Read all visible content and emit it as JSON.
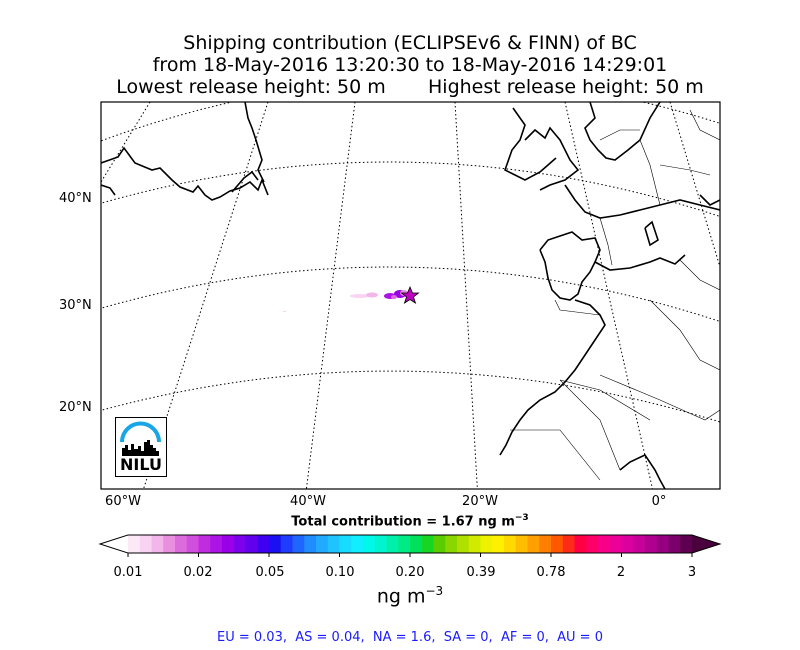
{
  "title": {
    "line1": "Shipping contribution (ECLIPSEv6 & FINN) of BC",
    "line2": "from 18-May-2016 13:20:30 to 18-May-2016 14:29:01",
    "line3": "Lowest release height: 50 m       Highest release height: 50 m"
  },
  "map": {
    "lat_labels": [
      "40°N",
      "30°N",
      "20°N"
    ],
    "lon_labels": [
      "60°W",
      "40°W",
      "20°W",
      "0°"
    ],
    "release_marker": "star-icon",
    "logo_text": "NILU"
  },
  "total": {
    "prefix": "Total contribution = 1.67 ng m",
    "exp": "−3"
  },
  "colorbar": {
    "ticks": [
      "0.01",
      "0.02",
      "0.05",
      "0.10",
      "0.20",
      "0.39",
      "0.78",
      "2",
      "3"
    ],
    "unit_base": "ng m",
    "unit_exp": "−3",
    "colors": [
      "#fde8f8",
      "#f9d3f2",
      "#f2b6ea",
      "#e88fe0",
      "#dc6bdc",
      "#d04fdc",
      "#bf2ddf",
      "#ab14e4",
      "#9a00e8",
      "#7d00eb",
      "#6200ee",
      "#3d00f0",
      "#1a10f2",
      "#1f3dff",
      "#1f66ff",
      "#218cff",
      "#22aaff",
      "#1fc4ff",
      "#18dcff",
      "#10eeff",
      "#00f8ea",
      "#00f5cf",
      "#00f0ac",
      "#00eb84",
      "#00e05a",
      "#18d524",
      "#5acd00",
      "#8ad600",
      "#b0e000",
      "#d2ea00",
      "#eef200",
      "#fff000",
      "#ffd900",
      "#ffbd00",
      "#ffa000",
      "#ff7f00",
      "#ff5800",
      "#ff2a18",
      "#ff0044",
      "#ff0068",
      "#f90088",
      "#ec0098",
      "#dc00a0",
      "#c8009b",
      "#b00090",
      "#960080",
      "#7c006c",
      "#5e0050"
    ]
  },
  "stats": "EU = 0.03,  AS = 0.04,  NA = 1.6,  SA = 0,  AF = 0,  AU = 0"
}
